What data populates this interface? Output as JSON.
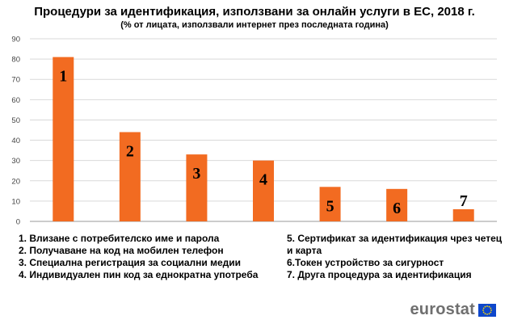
{
  "header": {
    "title": "Процедури за идентификация, използвани за онлайн услуги в ЕС, 2018 г.",
    "subtitle": "(% от лицата, използвали интернет през последната година)"
  },
  "chart_data": {
    "type": "bar",
    "categories": [
      "1",
      "2",
      "3",
      "4",
      "5",
      "6",
      "7"
    ],
    "values": [
      81,
      44,
      33,
      30,
      17,
      16,
      6
    ],
    "ylim": [
      0,
      90
    ],
    "yticks": [
      0,
      10,
      20,
      30,
      40,
      50,
      60,
      70,
      80,
      90
    ],
    "bar_color": "#f26b21",
    "grid": true,
    "legend": [
      "1. Влизане с потребителско име и парола",
      "2. Получаване на код на мобилен телефон",
      "3. Специална регистрация за социални медии",
      "4. Индивидуален пин код за еднократна употреба",
      "5. Сертификат за идентификация чрез четец и карта",
      "6.Токен устройство за сигурност",
      "7. Друга процедура за идентификация"
    ]
  },
  "branding": {
    "logo_text": "eurostat",
    "flag_color": "#0e47cb",
    "star_color": "#ffdd00"
  }
}
